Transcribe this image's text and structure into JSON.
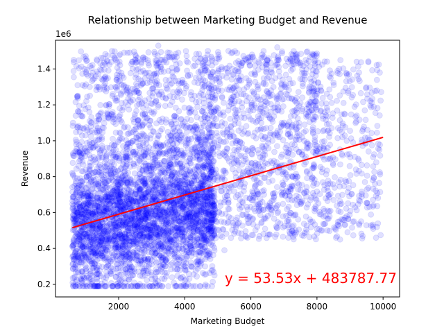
{
  "chart_data": {
    "type": "scatter",
    "title": "Relationship between Marketing Budget and Revenue",
    "xlabel": "Marketing Budget",
    "ylabel": "Revenue",
    "y_offset_label": "1e6",
    "xlim": [
      90,
      10500
    ],
    "ylim": [
      130000,
      1560000
    ],
    "x_ticks": [
      2000,
      4000,
      6000,
      8000,
      10000
    ],
    "x_tick_labels": [
      "2000",
      "4000",
      "6000",
      "8000",
      "10000"
    ],
    "y_ticks": [
      200000,
      400000,
      600000,
      800000,
      1000000,
      1200000,
      1400000
    ],
    "y_tick_labels": [
      "0.2",
      "0.4",
      "0.6",
      "0.8",
      "1.0",
      "1.2",
      "1.4"
    ],
    "grid": false,
    "point_color": "#0000ff",
    "point_alpha": 0.12,
    "sample_points": [
      [
        620,
        1100000
      ],
      [
        700,
        1140000
      ],
      [
        820,
        1160000
      ],
      [
        1800,
        1500000
      ],
      [
        3200,
        1530000
      ],
      [
        3400,
        1450000
      ],
      [
        4700,
        1500000
      ],
      [
        6800,
        1520000
      ],
      [
        9200,
        1440000
      ],
      [
        9900,
        1380000
      ],
      [
        9700,
        510000
      ],
      [
        9450,
        770000
      ],
      [
        8700,
        450000
      ],
      [
        7600,
        470000
      ],
      [
        5900,
        460000
      ],
      [
        4900,
        250000
      ],
      [
        4100,
        200000
      ],
      [
        1000,
        200000
      ],
      [
        1400,
        190000
      ],
      [
        2200,
        210000
      ],
      [
        3000,
        230000
      ],
      [
        5200,
        390000
      ],
      [
        6400,
        700000
      ],
      [
        7200,
        850000
      ],
      [
        8200,
        620000
      ],
      [
        8900,
        1000000
      ],
      [
        7400,
        1180000
      ],
      [
        6200,
        1300000
      ],
      [
        5600,
        1400000
      ],
      [
        4300,
        1250000
      ]
    ],
    "regression": {
      "slope": 53.53,
      "intercept": 483787.77,
      "x_range": [
        600,
        10000
      ],
      "color": "#ff0000",
      "label": "y = 53.53x + 483787.77"
    }
  }
}
